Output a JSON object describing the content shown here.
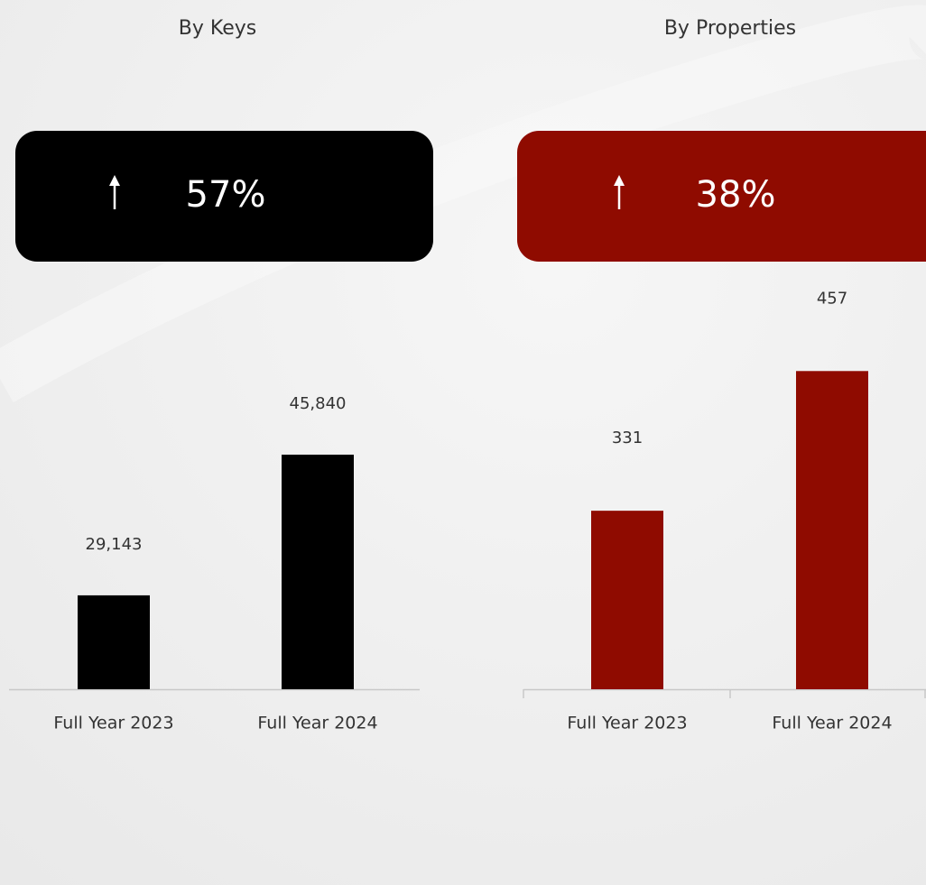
{
  "chart_data": [
    {
      "type": "bar",
      "title": "By Keys",
      "annotation": "57%",
      "categories": [
        "Full Year 2023",
        "Full Year 2024"
      ],
      "values": [
        29143,
        45840
      ],
      "value_labels": [
        "29,143",
        "45,840"
      ],
      "color": "#000000",
      "ylim": [
        18000,
        68000
      ]
    },
    {
      "type": "bar",
      "title": "By Properties",
      "annotation": "38%",
      "categories": [
        "Full Year 2023",
        "Full Year 2024"
      ],
      "values": [
        331,
        457
      ],
      "value_labels": [
        "331",
        "457"
      ],
      "color": "#8f0b00",
      "ylim": [
        170,
        550
      ]
    }
  ]
}
